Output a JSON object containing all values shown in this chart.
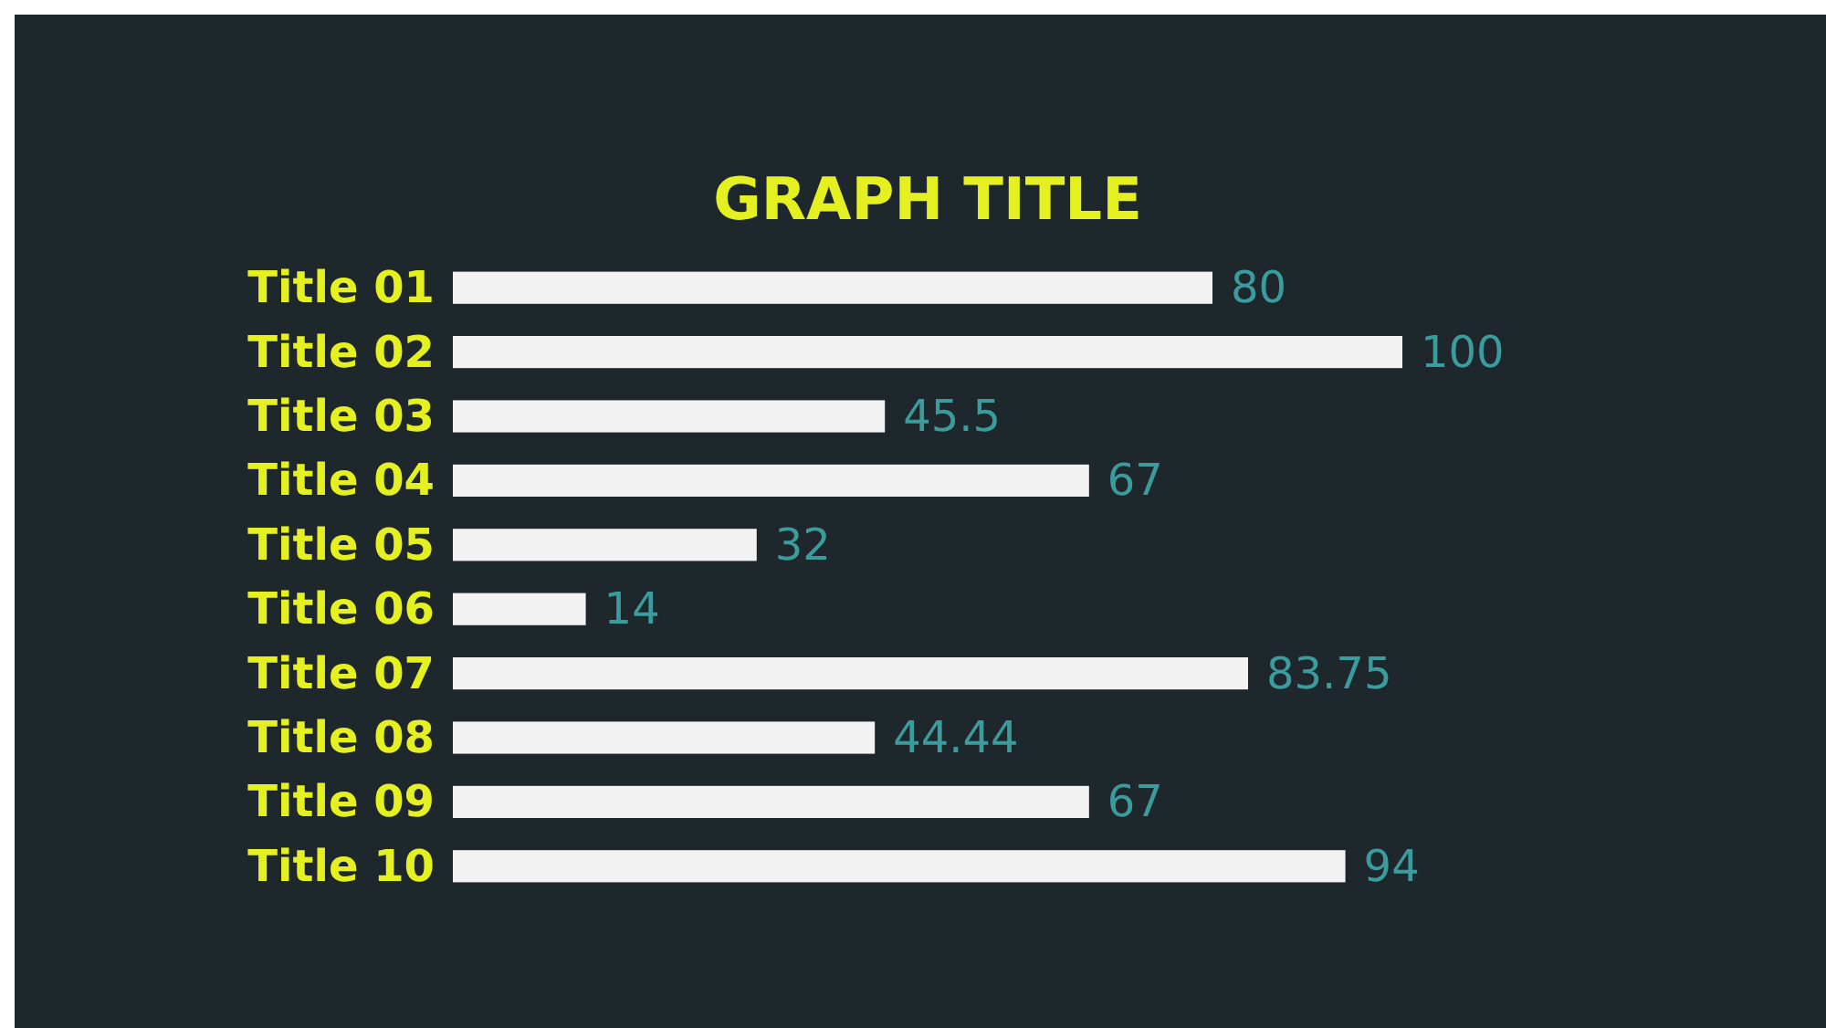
{
  "chart_data": {
    "type": "bar",
    "orientation": "horizontal",
    "title": "GRAPH TITLE",
    "categories": [
      "Title 01",
      "Title 02",
      "Title 03",
      "Title 04",
      "Title 05",
      "Title 06",
      "Title 07",
      "Title 08",
      "Title 09",
      "Title 10"
    ],
    "values": [
      80,
      100,
      45.5,
      67,
      32,
      14,
      83.75,
      44.44,
      67,
      94
    ],
    "color": "#f2f2f2",
    "data_labels": true
  }
}
